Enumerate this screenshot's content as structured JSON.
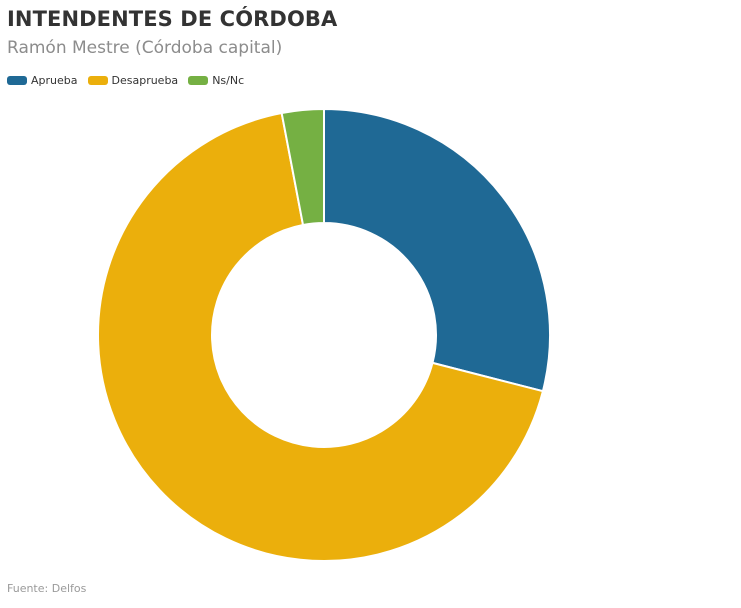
{
  "header": {
    "title": "INTENDENTES DE CÓRDOBA",
    "subtitle": "Ramón Mestre (Córdoba capital)"
  },
  "footer": {
    "source": "Fuente: Delfos"
  },
  "chart_data": {
    "type": "pie",
    "variant": "donut",
    "title": "INTENDENTES DE CÓRDOBA",
    "subtitle": "Ramón Mestre (Córdoba capital)",
    "categories": [
      "Aprueba",
      "Desaprueba",
      "Ns/Nc"
    ],
    "values": [
      29,
      68,
      3
    ],
    "colors": [
      "#1f6995",
      "#ebaf0c",
      "#75b043"
    ],
    "legend_placement": "top-left"
  }
}
